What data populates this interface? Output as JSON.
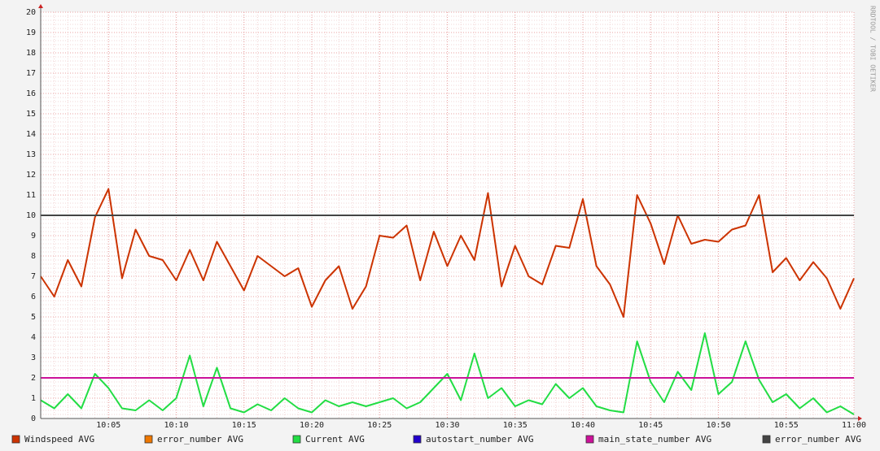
{
  "chart_data": {
    "type": "line",
    "x": [
      "10:00",
      "10:01",
      "10:02",
      "10:03",
      "10:04",
      "10:05",
      "10:06",
      "10:07",
      "10:08",
      "10:09",
      "10:10",
      "10:11",
      "10:12",
      "10:13",
      "10:14",
      "10:15",
      "10:16",
      "10:17",
      "10:18",
      "10:19",
      "10:20",
      "10:21",
      "10:22",
      "10:23",
      "10:24",
      "10:25",
      "10:26",
      "10:27",
      "10:28",
      "10:29",
      "10:30",
      "10:31",
      "10:32",
      "10:33",
      "10:34",
      "10:35",
      "10:36",
      "10:37",
      "10:38",
      "10:39",
      "10:40",
      "10:41",
      "10:42",
      "10:43",
      "10:44",
      "10:45",
      "10:46",
      "10:47",
      "10:48",
      "10:49",
      "10:50",
      "10:51",
      "10:52",
      "10:53",
      "10:54",
      "10:55",
      "10:56",
      "10:57",
      "10:58",
      "10:59",
      "11:00"
    ],
    "xticks": [
      "10:05",
      "10:10",
      "10:15",
      "10:20",
      "10:25",
      "10:30",
      "10:35",
      "10:40",
      "10:45",
      "10:50",
      "10:55",
      "11:00"
    ],
    "ylim": [
      0,
      20
    ],
    "yticks": [
      0,
      1,
      2,
      3,
      4,
      5,
      6,
      7,
      8,
      9,
      10,
      11,
      12,
      13,
      14,
      15,
      16,
      17,
      18,
      19,
      20
    ],
    "grid": true,
    "legend": "bottom",
    "watermark": "RRDTOOL / TOBI OETIKER",
    "series": [
      {
        "name": "Windspeed AVG",
        "color": "#cc3300",
        "values": [
          7.0,
          6.0,
          7.8,
          6.5,
          9.9,
          11.3,
          6.9,
          9.3,
          8.0,
          7.8,
          6.8,
          8.3,
          6.8,
          8.7,
          7.5,
          6.3,
          8.0,
          7.5,
          7.0,
          7.4,
          5.5,
          6.8,
          7.5,
          5.4,
          6.5,
          9.0,
          8.9,
          9.5,
          6.8,
          9.2,
          7.5,
          9.0,
          7.8,
          11.1,
          6.5,
          8.5,
          7.0,
          6.6,
          8.5,
          8.4,
          10.8,
          7.5,
          6.6,
          5.0,
          11.0,
          9.6,
          7.6,
          10.0,
          8.6,
          8.8,
          8.7,
          9.3,
          9.5,
          11.0,
          7.2,
          7.9,
          6.8,
          7.7,
          6.9,
          5.4,
          6.9
        ]
      },
      {
        "name": "error_number AVG",
        "color": "#ee7700"
      },
      {
        "name": "Current AVG",
        "color": "#22dd44",
        "values": [
          0.9,
          0.5,
          1.2,
          0.5,
          2.2,
          1.5,
          0.5,
          0.4,
          0.9,
          0.4,
          1.0,
          3.1,
          0.6,
          2.5,
          0.5,
          0.3,
          0.7,
          0.4,
          1.0,
          0.5,
          0.3,
          0.9,
          0.6,
          0.8,
          0.6,
          0.8,
          1.0,
          0.5,
          0.8,
          1.5,
          2.2,
          0.9,
          3.2,
          1.0,
          1.5,
          0.6,
          0.9,
          0.7,
          1.7,
          1.0,
          1.5,
          0.6,
          0.4,
          0.3,
          3.8,
          1.8,
          0.8,
          2.3,
          1.4,
          4.2,
          1.2,
          1.8,
          3.8,
          1.9,
          0.8,
          1.2,
          0.5,
          1.0,
          0.3,
          0.6,
          0.2
        ]
      },
      {
        "name": "autostart_number AVG",
        "color": "#2200cc"
      },
      {
        "name": "main_state_number AVG",
        "color": "#cc1199",
        "values": [
          2,
          2,
          2,
          2,
          2,
          2,
          2,
          2,
          2,
          2,
          2,
          2,
          2,
          2,
          2,
          2,
          2,
          2,
          2,
          2,
          2,
          2,
          2,
          2,
          2,
          2,
          2,
          2,
          2,
          2,
          2,
          2,
          2,
          2,
          2,
          2,
          2,
          2,
          2,
          2,
          2,
          2,
          2,
          2,
          2,
          2,
          2,
          2,
          2,
          2,
          2,
          2,
          2,
          2,
          2,
          2,
          2,
          2,
          2,
          2,
          2
        ]
      },
      {
        "name": "error_number AVG",
        "color": "#444444",
        "values": [
          10,
          10,
          10,
          10,
          10,
          10,
          10,
          10,
          10,
          10,
          10,
          10,
          10,
          10,
          10,
          10,
          10,
          10,
          10,
          10,
          10,
          10,
          10,
          10,
          10,
          10,
          10,
          10,
          10,
          10,
          10,
          10,
          10,
          10,
          10,
          10,
          10,
          10,
          10,
          10,
          10,
          10,
          10,
          10,
          10,
          10,
          10,
          10,
          10,
          10,
          10,
          10,
          10,
          10,
          10,
          10,
          10,
          10,
          10,
          10,
          10
        ]
      }
    ]
  }
}
